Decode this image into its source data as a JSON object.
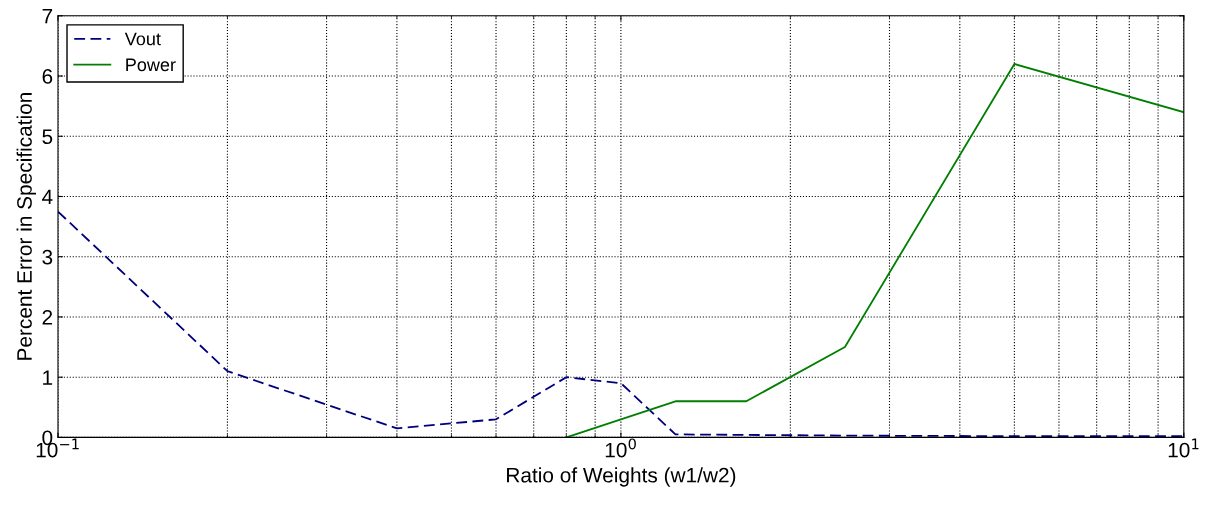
{
  "chart_data": {
    "type": "line",
    "xlabel": "Ratio of Weights (w1/w2)",
    "ylabel": "Percent Error in Specification",
    "log": "x",
    "xlim": [
      0.1,
      10
    ],
    "xticks": [
      {
        "value": 0.1,
        "label": "10$^{−1}$"
      },
      {
        "value": 1,
        "label": "10$^{0}$"
      },
      {
        "value": 10,
        "label": "10$^{1}$"
      }
    ],
    "ylim": [
      0,
      7
    ],
    "yticks": [
      0,
      1,
      2,
      3,
      4,
      5,
      6,
      7
    ],
    "grid": true,
    "legend": "top left",
    "series": [
      {
        "name": "Vout",
        "color": "#00007f",
        "line_style": "dashed",
        "x": [
          0.1,
          0.2,
          0.4,
          0.6,
          0.8,
          1.0,
          1.25,
          2.5,
          5,
          10
        ],
        "values": [
          3.75,
          1.1,
          0.15,
          0.3,
          1.0,
          0.9,
          0.05,
          0.03,
          0.02,
          0.02
        ]
      },
      {
        "name": "Power",
        "color": "#007f00",
        "line_style": "solid",
        "x": [
          0.8,
          1.25,
          1.67,
          2.5,
          5,
          10
        ],
        "values": [
          0,
          0.6,
          0.6,
          1.5,
          6.2,
          5.4
        ]
      }
    ]
  }
}
